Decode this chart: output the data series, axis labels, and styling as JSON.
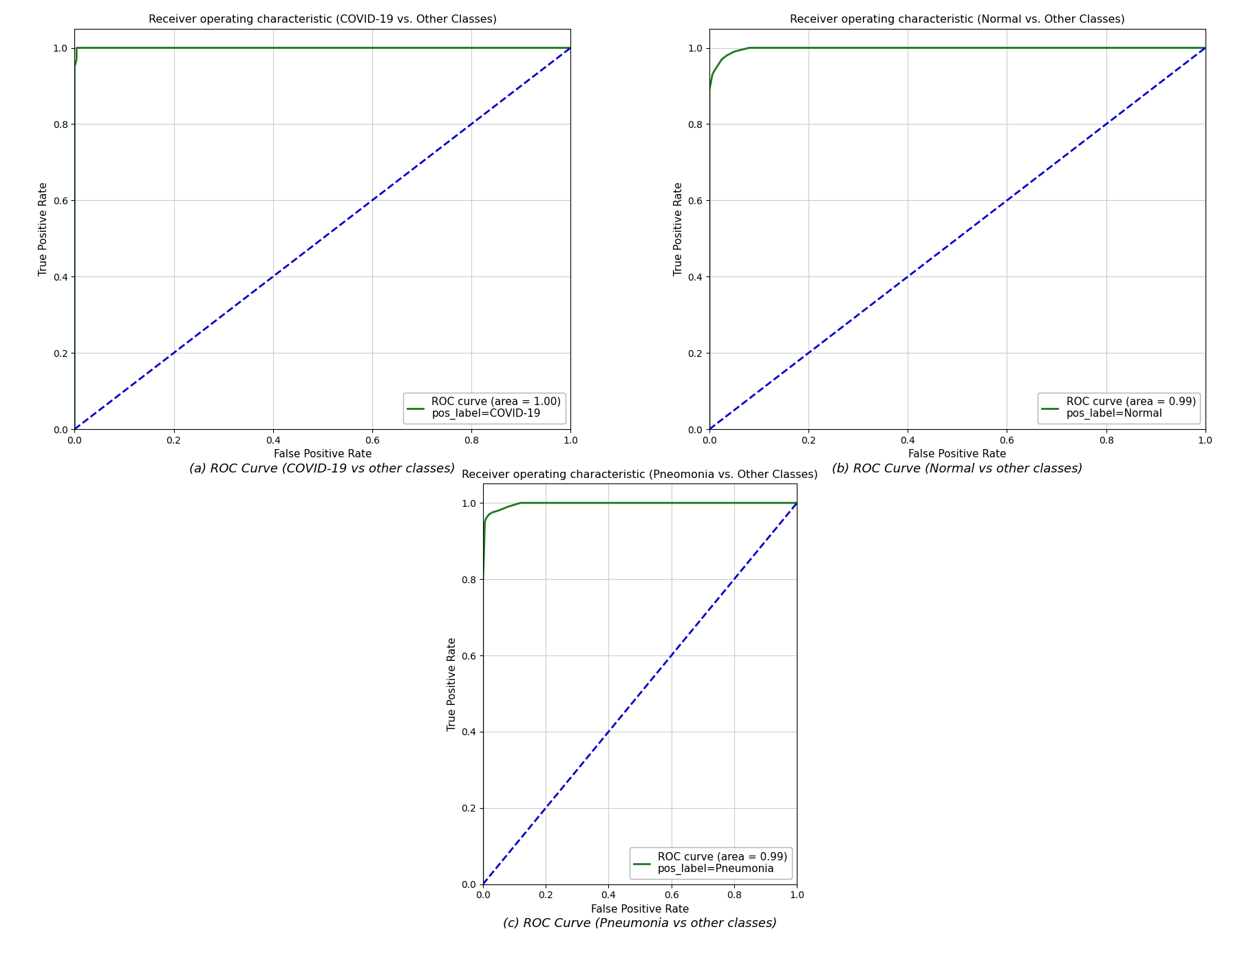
{
  "plots": [
    {
      "title": "Receiver operating characteristic (COVID-19 vs. Other Classes)",
      "caption": "(a) ROC Curve (COVID-19 vs other classes)",
      "legend_line1": "ROC curve (area = 1.00)",
      "legend_line2": "pos_label=COVID-19",
      "roc_fpr": [
        0.0,
        0.0,
        0.004,
        0.004,
        1.0
      ],
      "roc_tpr": [
        0.0,
        0.95,
        0.97,
        1.0,
        1.0
      ]
    },
    {
      "title": "Receiver operating characteristic (Normal vs. Other Classes)",
      "caption": "(b) ROC Curve (Normal vs other classes)",
      "legend_line1": "ROC curve (area = 0.99)",
      "legend_line2": "pos_label=Normal",
      "roc_fpr": [
        0.0,
        0.0,
        0.003,
        0.006,
        0.01,
        0.015,
        0.02,
        0.025,
        0.035,
        0.05,
        0.08,
        0.12,
        1.0
      ],
      "roc_tpr": [
        0.0,
        0.89,
        0.91,
        0.93,
        0.94,
        0.95,
        0.96,
        0.97,
        0.98,
        0.99,
        1.0,
        1.0,
        1.0
      ]
    },
    {
      "title": "Receiver operating characteristic (Pneomonia vs. Other Classes)",
      "caption": "(c) ROC Curve (Pneumonia vs other classes)",
      "legend_line1": "ROC curve (area = 0.99)",
      "legend_line2": "pos_label=Pneumonia",
      "roc_fpr": [
        0.0,
        0.0,
        0.003,
        0.006,
        0.01,
        0.02,
        0.03,
        0.05,
        0.08,
        0.12,
        0.2,
        0.4,
        1.0
      ],
      "roc_tpr": [
        0.0,
        0.79,
        0.86,
        0.95,
        0.96,
        0.97,
        0.975,
        0.98,
        0.99,
        1.0,
        1.0,
        1.0,
        1.0
      ]
    }
  ],
  "roc_color": "#1a7a1a",
  "diag_color": "#0000cc",
  "xlabel": "False Positive Rate",
  "ylabel": "True Positive Rate",
  "xlim": [
    0.0,
    1.0
  ],
  "ylim": [
    0.0,
    1.05
  ],
  "roc_linewidth": 2.0,
  "diag_linewidth": 2.0,
  "grid_color": "#cccccc",
  "legend_fontsize": 11,
  "title_fontsize": 11.5,
  "label_fontsize": 11,
  "caption_fontsize": 13,
  "tick_fontsize": 10
}
